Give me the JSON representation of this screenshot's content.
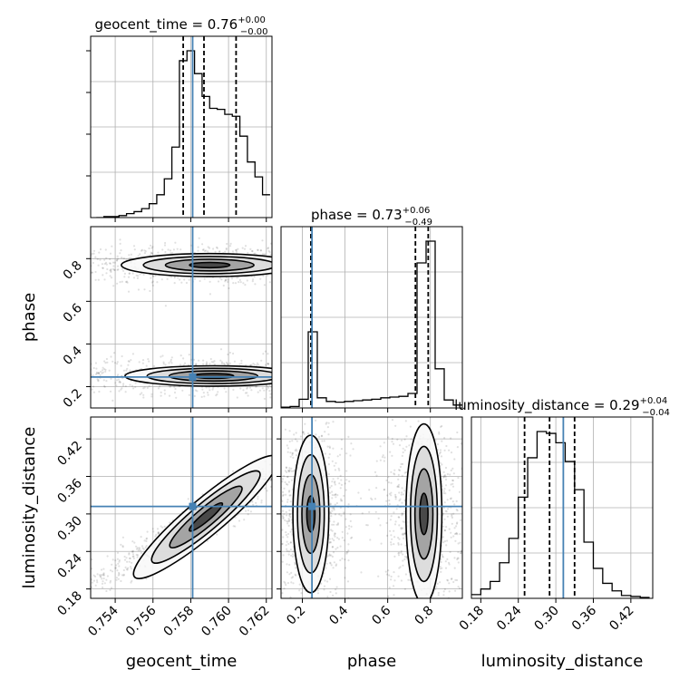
{
  "chart_data": {
    "type": "corner",
    "parameters": [
      "geocent_time",
      "phase",
      "luminosity_distance"
    ],
    "truths": {
      "geocent_time": 0.7581,
      "phase": 0.245,
      "luminosity_distance": 0.312
    },
    "ranges": {
      "geocent_time": [
        0.7527,
        0.7623
      ],
      "phase": [
        0.1,
        0.95
      ],
      "luminosity_distance": [
        0.165,
        0.455
      ]
    },
    "ticks": {
      "geocent_time": {
        "values": [
          0.754,
          0.756,
          0.758,
          0.76,
          0.762
        ],
        "labels": [
          "0.754",
          "0.756",
          "0.758",
          "0.760",
          "0.762"
        ]
      },
      "phase": {
        "values": [
          0.2,
          0.4,
          0.6,
          0.8
        ],
        "labels": [
          "0.2",
          "0.4",
          "0.6",
          "0.8"
        ]
      },
      "luminosity_distance": {
        "values": [
          0.18,
          0.24,
          0.3,
          0.36,
          0.42
        ],
        "labels": [
          "0.18",
          "0.24",
          "0.30",
          "0.36",
          "0.42"
        ]
      }
    },
    "diagonal": [
      {
        "param": "geocent_time",
        "title_main": "geocent_time = 0.76",
        "title_sup": "+0.00",
        "title_sub": "−0.00",
        "quantiles": [
          0.7576,
          0.7587,
          0.7604
        ],
        "bin_edges": [
          0.753,
          0.7534,
          0.7538,
          0.7542,
          0.7546,
          0.755,
          0.7554,
          0.7558,
          0.7562,
          0.7566,
          0.757,
          0.7574,
          0.7578,
          0.7582,
          0.7586,
          0.759,
          0.7594,
          0.7598,
          0.7602,
          0.7606,
          0.761,
          0.7614,
          0.7618,
          0.7622
        ],
        "counts": [
          0,
          1,
          1,
          2,
          4,
          6,
          9,
          14,
          23,
          39,
          71,
          158,
          168,
          145,
          122,
          110,
          109,
          104,
          102,
          82,
          56,
          41,
          23
        ]
      },
      {
        "param": "phase",
        "title_main": "phase = 0.73",
        "title_sup": "+0.06",
        "title_sub": "−0.49",
        "quantiles": [
          0.24,
          0.73,
          0.79
        ],
        "bin_edges": [
          0.1,
          0.1425,
          0.185,
          0.2275,
          0.27,
          0.3125,
          0.355,
          0.3975,
          0.44,
          0.4825,
          0.525,
          0.5675,
          0.61,
          0.6525,
          0.695,
          0.7375,
          0.78,
          0.8225,
          0.865,
          0.9075,
          0.95
        ],
        "counts": [
          2,
          4,
          24,
          210,
          28,
          18,
          16,
          18,
          20,
          22,
          24,
          28,
          30,
          32,
          40,
          400,
          460,
          108,
          22,
          8
        ]
      },
      {
        "param": "luminosity_distance",
        "title_main": "luminosity_distance = 0.29",
        "title_sup": "+0.04",
        "title_sub": "−0.04",
        "quantiles": [
          0.25,
          0.29,
          0.33
        ],
        "bin_edges": [
          0.165,
          0.18,
          0.195,
          0.21,
          0.225,
          0.24,
          0.255,
          0.27,
          0.285,
          0.3,
          0.315,
          0.33,
          0.345,
          0.36,
          0.375,
          0.39,
          0.405,
          0.42,
          0.435,
          0.45
        ],
        "counts": [
          4,
          10,
          18,
          38,
          64,
          108,
          150,
          178,
          176,
          166,
          146,
          116,
          60,
          32,
          16,
          8,
          3,
          2,
          1
        ]
      }
    ],
    "pairs": [
      {
        "x": "geocent_time",
        "y": "phase",
        "modes": [
          {
            "cx": 0.759,
            "cy": 0.77,
            "sx": 0.0013,
            "sy": 0.025,
            "levels": [
              0.8,
              0.5,
              0.25,
              0.1
            ]
          },
          {
            "cx": 0.7592,
            "cy": 0.25,
            "sx": 0.0013,
            "sy": 0.022,
            "levels": [
              0.8,
              0.5,
              0.25,
              0.1
            ]
          }
        ]
      },
      {
        "x": "geocent_time",
        "y": "luminosity_distance",
        "modes": [
          {
            "cx": 0.7588,
            "cy": 0.295,
            "sx": 0.0012,
            "sy": 0.018,
            "levels": [
              0.8,
              0.5,
              0.25,
              0.1
            ],
            "tilt": -40
          }
        ]
      },
      {
        "x": "phase",
        "y": "luminosity_distance",
        "modes": [
          {
            "cx": 0.24,
            "cy": 0.3,
            "sx": 0.035,
            "sy": 0.035,
            "levels": [
              0.8,
              0.5,
              0.25,
              0.1
            ]
          },
          {
            "cx": 0.77,
            "cy": 0.3,
            "sx": 0.035,
            "sy": 0.04,
            "levels": [
              0.8,
              0.5,
              0.25,
              0.1
            ]
          }
        ]
      }
    ]
  }
}
